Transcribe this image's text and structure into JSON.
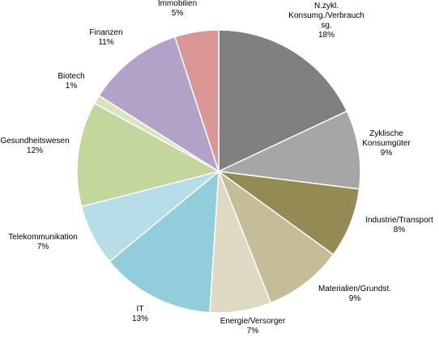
{
  "chart_data": {
    "type": "pie",
    "title": "",
    "start_angle_deg": 0,
    "direction": "clockwise",
    "slices": [
      {
        "label_lines": [
          "N.zykl.",
          "Konsumg./Verbrauch",
          "sg."
        ],
        "value_label": "18%",
        "value": 18,
        "color": "#808080"
      },
      {
        "label_lines": [
          "Zyklische",
          "Konsumgüter"
        ],
        "value_label": "9%",
        "value": 9,
        "color": "#a6a6a6"
      },
      {
        "label_lines": [
          "Industrie/Transport"
        ],
        "value_label": "8%",
        "value": 8,
        "color": "#948a54"
      },
      {
        "label_lines": [
          "Materialien/Grundst."
        ],
        "value_label": "9%",
        "value": 9,
        "color": "#c4bd97"
      },
      {
        "label_lines": [
          "Energie/Versorger"
        ],
        "value_label": "7%",
        "value": 7,
        "color": "#ddd9c3"
      },
      {
        "label_lines": [
          "IT"
        ],
        "value_label": "13%",
        "value": 13,
        "color": "#92cddc"
      },
      {
        "label_lines": [
          "Telekommunikation"
        ],
        "value_label": "7%",
        "value": 7,
        "color": "#b7dee8"
      },
      {
        "label_lines": [
          "Gesundheitswesen"
        ],
        "value_label": "12%",
        "value": 12,
        "color": "#c3d69b"
      },
      {
        "label_lines": [
          "Biotech"
        ],
        "value_label": "1%",
        "value": 1,
        "color": "#d7e4bd"
      },
      {
        "label_lines": [
          "Finanzen"
        ],
        "value_label": "11%",
        "value": 11,
        "color": "#b2a2c7"
      },
      {
        "label_lines": [
          "Immobilien"
        ],
        "value_label": "5%",
        "value": 5,
        "color": "#d99694"
      }
    ]
  }
}
